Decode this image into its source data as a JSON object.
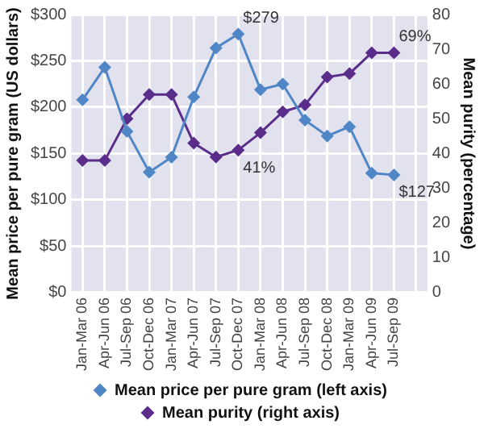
{
  "chart_data": {
    "type": "line",
    "categories": [
      "Jan-Mar 06",
      "Apr-Jun 06",
      "Jul-Sep 06",
      "Oct-Dec 06",
      "Jan-Mar 07",
      "Apr-Jun 07",
      "Jul-Sep 07",
      "Oct-Dec 07",
      "Jan-Mar 08",
      "Apr-Jun 08",
      "Jul-Sep 08",
      "Oct-Dec 08",
      "Jan-Mar 09",
      "Apr-Jun 09",
      "Jul-Sep 09",
      null
    ],
    "ylabel": "Mean price per pure gram (US dollars)",
    "y2label": "Mean purity (percentage)",
    "ylim": [
      0,
      300
    ],
    "yticks": [
      {
        "value": 0,
        "label": "$0"
      },
      {
        "value": 50,
        "label": "$50"
      },
      {
        "value": 100,
        "label": "$100"
      },
      {
        "value": 150,
        "label": "$150"
      },
      {
        "value": 200,
        "label": "$200"
      },
      {
        "value": 250,
        "label": "$250"
      },
      {
        "value": 300,
        "label": "$300"
      }
    ],
    "y2lim": [
      0,
      80
    ],
    "y2ticks": [
      0,
      10,
      20,
      30,
      40,
      50,
      60,
      70,
      80
    ],
    "series": [
      {
        "name": "Mean price per pure gram (left axis)",
        "color": "#4f86c6",
        "values": [
          208,
          243,
          174,
          130,
          146,
          211,
          264,
          279,
          219,
          225,
          186,
          169,
          179,
          129,
          127,
          null
        ],
        "value_labels": [
          null,
          null,
          null,
          null,
          null,
          null,
          null,
          "$279",
          null,
          null,
          null,
          null,
          null,
          null,
          "$127",
          null
        ]
      },
      {
        "name": "Mean purity (right axis)",
        "color": "#5b2d8a",
        "axis": "y2",
        "values": [
          38,
          38,
          50,
          57,
          57,
          43,
          39,
          41,
          46,
          52,
          54,
          62,
          63,
          69,
          69,
          null
        ],
        "value_labels": [
          null,
          null,
          null,
          null,
          null,
          null,
          null,
          "41%",
          null,
          null,
          null,
          null,
          null,
          null,
          "69%",
          null
        ]
      }
    ],
    "grid": true,
    "legend": "bottom",
    "marker": "diamond",
    "line_style": "solid"
  }
}
